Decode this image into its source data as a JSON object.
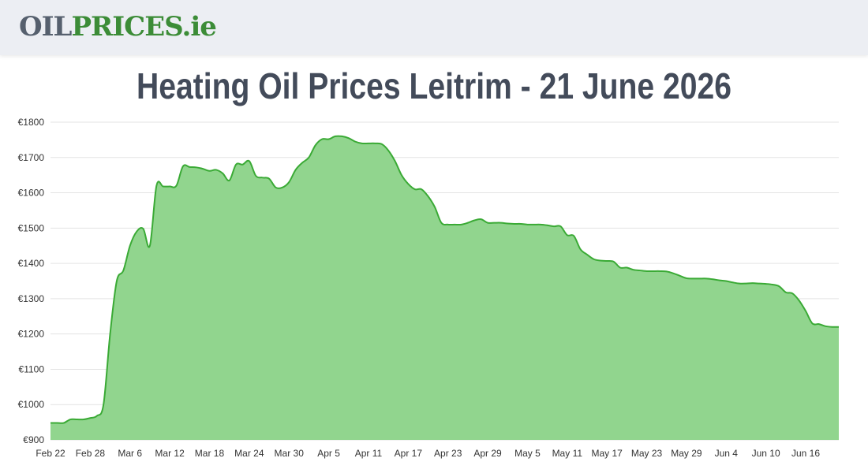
{
  "header": {
    "logo": [
      "OIL",
      "PRICES.ie"
    ]
  },
  "chart_data": {
    "type": "area",
    "title": "Heating Oil Prices Leitrim - 21 June 2026",
    "categories": [
      "Feb 22",
      null,
      null,
      null,
      null,
      null,
      "Feb 28",
      null,
      null,
      null,
      null,
      null,
      "Mar 6",
      null,
      null,
      null,
      null,
      null,
      "Mar 12",
      null,
      null,
      null,
      null,
      null,
      "Mar 18",
      null,
      null,
      null,
      null,
      null,
      "Mar 24",
      null,
      null,
      null,
      null,
      null,
      "Mar 30",
      null,
      null,
      null,
      null,
      null,
      "Apr 5",
      null,
      null,
      null,
      null,
      null,
      "Apr 11",
      null,
      null,
      null,
      null,
      null,
      "Apr 17",
      null,
      null,
      null,
      null,
      null,
      "Apr 23",
      null,
      null,
      null,
      null,
      null,
      "Apr 29",
      null,
      null,
      null,
      null,
      null,
      "May 5",
      null,
      null,
      null,
      null,
      null,
      "May 11",
      null,
      null,
      null,
      null,
      null,
      "May 17",
      null,
      null,
      null,
      null,
      null,
      "May 23",
      null,
      null,
      null,
      null,
      null,
      "May 29",
      null,
      null,
      null,
      null,
      null,
      "Jun 4",
      null,
      null,
      null,
      null,
      null,
      "Jun 10",
      null,
      null,
      null,
      null,
      null,
      "Jun 16",
      null,
      null,
      null,
      null,
      null
    ],
    "values": [
      948,
      948,
      948,
      958,
      958,
      958,
      962,
      968,
      1000,
      1200,
      1350,
      1380,
      1450,
      1490,
      1498,
      1450,
      1620,
      1618,
      1618,
      1620,
      1675,
      1673,
      1672,
      1668,
      1662,
      1665,
      1655,
      1635,
      1680,
      1680,
      1690,
      1648,
      1643,
      1640,
      1615,
      1615,
      1630,
      1665,
      1685,
      1700,
      1735,
      1752,
      1752,
      1760,
      1760,
      1755,
      1745,
      1740,
      1740,
      1740,
      1738,
      1720,
      1690,
      1650,
      1625,
      1610,
      1610,
      1590,
      1560,
      1515,
      1510,
      1510,
      1510,
      1515,
      1522,
      1525,
      1515,
      1515,
      1515,
      1513,
      1512,
      1512,
      1510,
      1510,
      1510,
      1508,
      1505,
      1505,
      1480,
      1478,
      1440,
      1425,
      1412,
      1408,
      1407,
      1405,
      1388,
      1388,
      1382,
      1380,
      1378,
      1378,
      1378,
      1377,
      1372,
      1365,
      1358,
      1357,
      1357,
      1357,
      1355,
      1352,
      1350,
      1346,
      1343,
      1343,
      1344,
      1343,
      1342,
      1340,
      1335,
      1318,
      1315,
      1295,
      1265,
      1230,
      1228,
      1222,
      1220,
      1220
    ],
    "color": "#3aaa35",
    "fill": "#91d58e",
    "ylim": [
      900,
      1800
    ],
    "yticks": [
      {
        "value": 900,
        "label": "€900"
      },
      {
        "value": 1000,
        "label": "€1000"
      },
      {
        "value": 1100,
        "label": "€1100"
      },
      {
        "value": 1200,
        "label": "€1200"
      },
      {
        "value": 1300,
        "label": "€1300"
      },
      {
        "value": 1400,
        "label": "€1400"
      },
      {
        "value": 1500,
        "label": "€1500"
      },
      {
        "value": 1600,
        "label": "€1600"
      },
      {
        "value": 1700,
        "label": "€1700"
      },
      {
        "value": 1800,
        "label": "€1800"
      }
    ],
    "grid": true
  }
}
